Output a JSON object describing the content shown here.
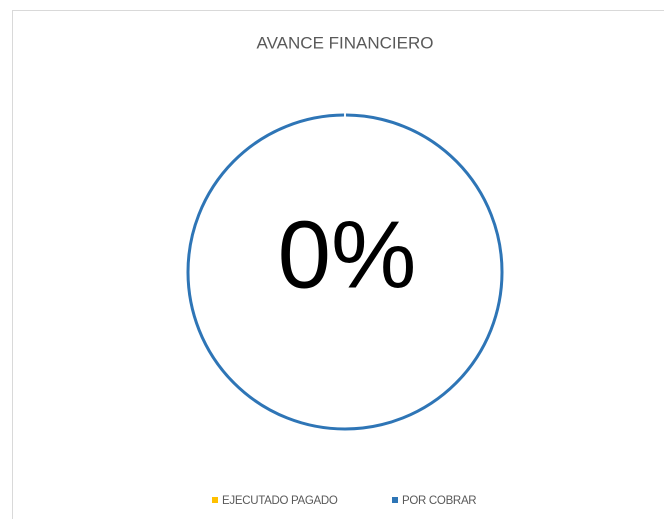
{
  "chart_data": {
    "type": "doughnut",
    "title": "AVANCE FINANCIERO",
    "categories": [
      "EJECUTADO PAGADO",
      "POR COBRAR"
    ],
    "values": [
      0,
      100
    ],
    "colors": [
      "#ffc000",
      "#2e75b6"
    ],
    "center_label": "0%",
    "legend": "bottom"
  }
}
